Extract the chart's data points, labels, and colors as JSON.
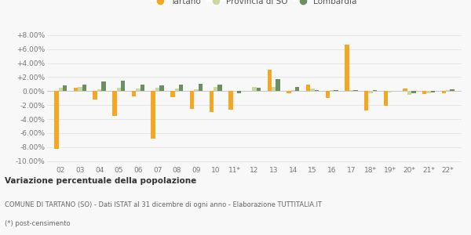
{
  "categories": [
    "02",
    "03",
    "04",
    "05",
    "06",
    "07",
    "08",
    "09",
    "10",
    "11*",
    "12",
    "13",
    "14",
    "15",
    "16",
    "17",
    "18*",
    "19*",
    "20*",
    "21*",
    "22*"
  ],
  "tartano": [
    -8.3,
    0.5,
    -1.2,
    -3.5,
    -0.8,
    -6.8,
    -0.9,
    -2.5,
    -3.0,
    -2.7,
    0.0,
    3.1,
    -0.3,
    0.9,
    -1.0,
    6.6,
    -2.8,
    -2.1,
    0.4,
    -0.4,
    -0.3
  ],
  "provincia_so": [
    0.5,
    0.6,
    0.3,
    0.5,
    0.4,
    0.5,
    0.4,
    0.3,
    0.6,
    -0.1,
    0.6,
    0.6,
    0.1,
    0.4,
    0.1,
    0.1,
    -0.3,
    -0.2,
    -0.5,
    -0.3,
    0.1
  ],
  "lombardia": [
    0.8,
    0.9,
    1.4,
    1.5,
    0.9,
    0.8,
    0.9,
    1.0,
    0.9,
    -0.3,
    0.5,
    1.7,
    0.6,
    0.2,
    0.2,
    0.1,
    0.1,
    0.0,
    -0.3,
    -0.2,
    0.3
  ],
  "color_tartano": "#f5a623",
  "color_provincia": "#c8d8a0",
  "color_lombardia": "#6b8f5e",
  "ylim": [
    -10.5,
    9.0
  ],
  "yticks": [
    -10.0,
    -8.0,
    -6.0,
    -4.0,
    -2.0,
    0.0,
    2.0,
    4.0,
    6.0,
    8.0
  ],
  "ytick_labels": [
    "-10.00%",
    "-8.00%",
    "-6.00%",
    "-4.00%",
    "-2.00%",
    "0.00%",
    "+2.00%",
    "+4.00%",
    "+6.00%",
    "+8.00%"
  ],
  "title_bold": "Variazione percentuale della popolazione",
  "subtitle1": "COMUNE DI TARTANO (SO) - Dati ISTAT al 31 dicembre di ogni anno - Elaborazione TUTTITALIA.IT",
  "subtitle2": "(*) post-censimento",
  "legend_labels": [
    "Tartano",
    "Provincia di SO",
    "Lombardia"
  ],
  "bg_color": "#f8f8f8",
  "bar_width": 0.22
}
